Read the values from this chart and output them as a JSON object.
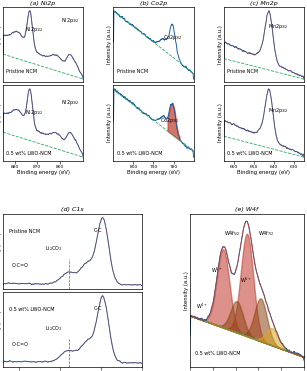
{
  "title_a": "(a) Ni2p",
  "title_b": "(b) Co2p",
  "title_c": "(c) Mn2p",
  "title_d": "(d) C1s",
  "title_e": "(e) W4f",
  "label_pristine": "Pristine NCM",
  "label_coated": "0.5 wt% LWO-NCM",
  "xlabel": "Binding energy (eV)",
  "ylabel": "Intensity (a.u.)",
  "line_blue": "#1a5fa8",
  "line_red": "#c0392b",
  "line_green": "#27ae60",
  "line_dark_red": "#8B0000",
  "line_brown": "#8B4513",
  "line_orange": "#DAA520",
  "line_grey": "#555555"
}
